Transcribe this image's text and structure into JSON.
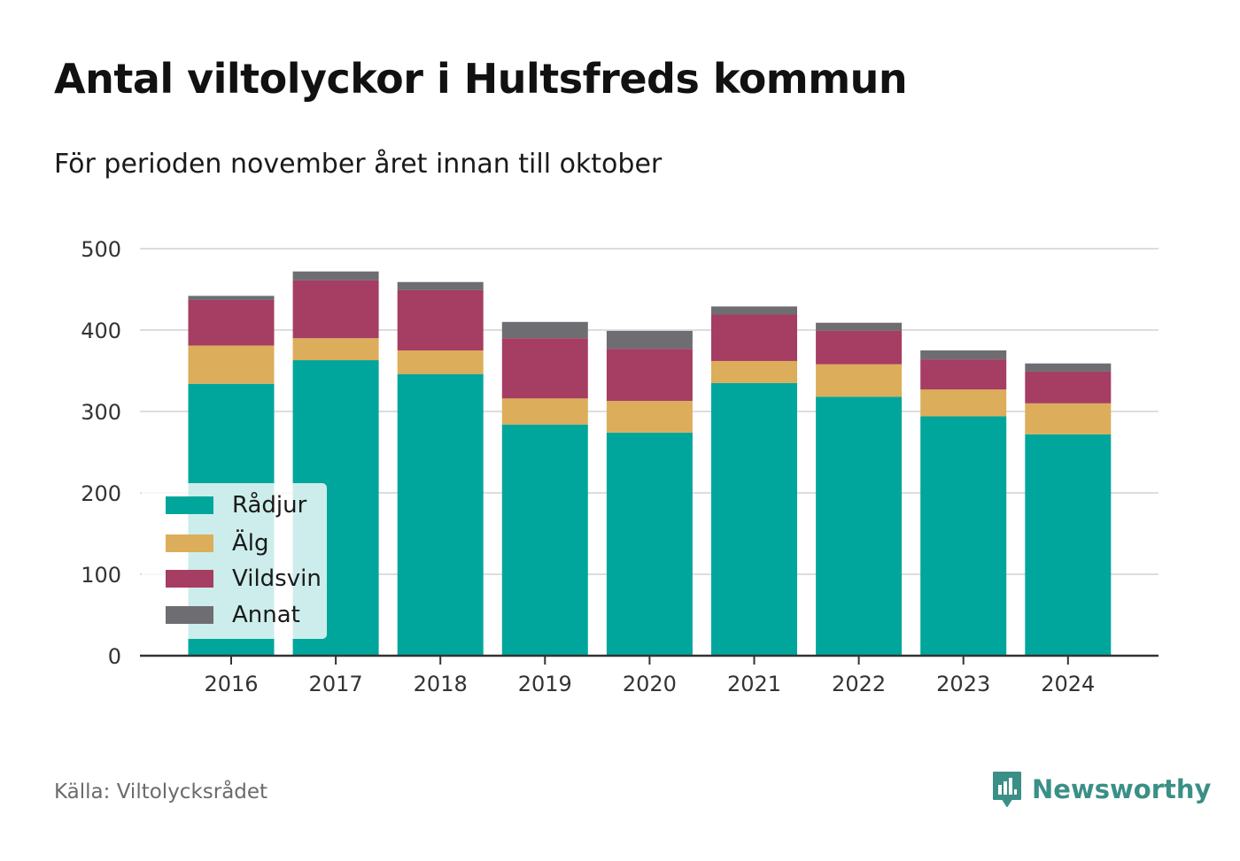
{
  "header": {
    "title": "Antal viltolyckor i Hultsfreds kommun",
    "subtitle": "För perioden november året innan till oktober"
  },
  "footer": {
    "source": "Källa: Viltolycksrådet",
    "brand": "Newsworthy",
    "brand_logo_icon": "newsworthy-logo-icon"
  },
  "chart_data": {
    "type": "bar",
    "stacked": true,
    "categories": [
      "2016",
      "2017",
      "2018",
      "2019",
      "2020",
      "2021",
      "2022",
      "2023",
      "2024"
    ],
    "series": [
      {
        "name": "Rådjur",
        "color": "#00a69c",
        "values": [
          334,
          363,
          346,
          284,
          274,
          335,
          318,
          294,
          272
        ]
      },
      {
        "name": "Älg",
        "color": "#dcad5a",
        "values": [
          47,
          27,
          29,
          32,
          39,
          27,
          40,
          33,
          38
        ]
      },
      {
        "name": "Vildsvin",
        "color": "#a63d63",
        "values": [
          56,
          71,
          74,
          74,
          64,
          57,
          41,
          37,
          39
        ]
      },
      {
        "name": "Annat",
        "color": "#6e6d72",
        "values": [
          5,
          11,
          10,
          20,
          22,
          10,
          10,
          11,
          10
        ]
      }
    ],
    "ylim": [
      0,
      500
    ],
    "yticks": [
      0,
      100,
      200,
      300,
      400,
      500
    ],
    "grid": true,
    "legend_position": "bottom-left"
  }
}
